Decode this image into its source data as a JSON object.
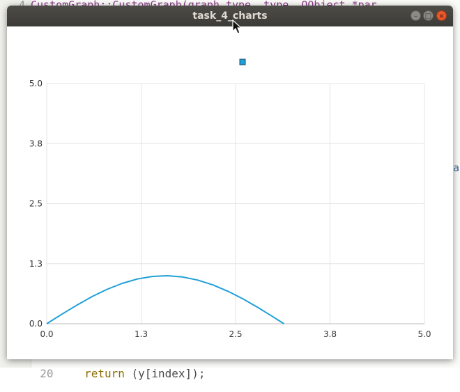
{
  "editor": {
    "top_line_number": "4",
    "top_code": "CustomGraph::CustomGraph(graph_type, type, QObject *par",
    "bottom_line_number": "20",
    "bottom_code_keyword": "return",
    "bottom_code_rest": " (y[index]);",
    "right_char": "a"
  },
  "window": {
    "title": "task_4_charts",
    "minimize_glyph": "–",
    "maximize_glyph": "□",
    "close_glyph": "×"
  },
  "colors": {
    "series": "#1f9fd8",
    "grid": "#e4e4e4",
    "axis": "#bdbdbd",
    "title_bar": "#3c3b37",
    "close_button": "#e9572a"
  },
  "chart_data": {
    "type": "line",
    "title": "",
    "xlabel": "",
    "ylabel": "",
    "xlim": [
      0,
      5
    ],
    "ylim": [
      0,
      5
    ],
    "x_ticks": [
      "0.0",
      "1.3",
      "2.5",
      "3.8",
      "5.0"
    ],
    "y_ticks": [
      "0.0",
      "1.3",
      "2.5",
      "3.8",
      "5.0"
    ],
    "grid": true,
    "legend": "top-center",
    "series": [
      {
        "name": "",
        "x": [
          0,
          0.2,
          0.4,
          0.6,
          0.8,
          1.0,
          1.2,
          1.4,
          1.6,
          1.8,
          2.0,
          2.2,
          2.4,
          2.6,
          2.8,
          3.0,
          3.14
        ],
        "y": [
          0,
          0.199,
          0.389,
          0.565,
          0.717,
          0.841,
          0.932,
          0.985,
          1.0,
          0.974,
          0.909,
          0.808,
          0.675,
          0.516,
          0.335,
          0.141,
          0
        ]
      }
    ]
  }
}
